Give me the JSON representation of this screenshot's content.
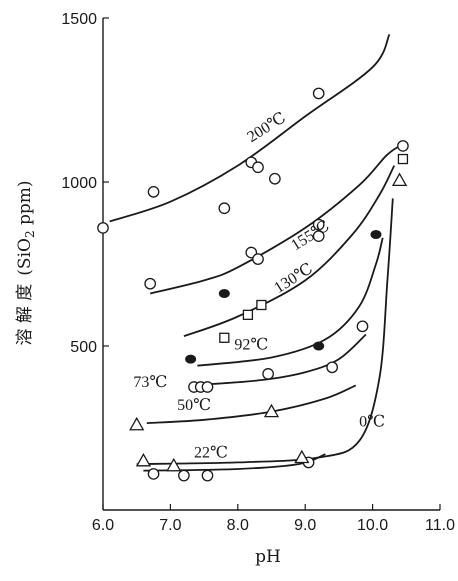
{
  "chart_data": {
    "type": "line",
    "xlabel": "pH",
    "ylabel": "溶 解 度 (SiO2 ppm)",
    "ylabel_parts": {
      "main": "溶 解 度",
      "unit_prefix": "(SiO",
      "unit_sub": "2",
      "unit_suffix": " ppm)"
    },
    "xlim": [
      6.0,
      11.0
    ],
    "ylim": [
      0,
      1500
    ],
    "x_ticks": [
      6.0,
      7.0,
      8.0,
      9.0,
      10.0,
      11.0
    ],
    "x_tick_labels": [
      "6.0",
      "7.0",
      "8.0",
      "9.0",
      "10.0",
      "11.0"
    ],
    "y_ticks": [
      500,
      1000,
      1500
    ],
    "y_tick_labels": [
      "500",
      "1000",
      "1500"
    ],
    "grid": false,
    "series": [
      {
        "name": "200℃",
        "marker": "circle-open",
        "curve": [
          [
            6.1,
            880
          ],
          [
            7.0,
            940
          ],
          [
            8.0,
            1050
          ],
          [
            9.0,
            1200
          ],
          [
            10.0,
            1350
          ],
          [
            10.25,
            1450
          ]
        ],
        "points": [
          [
            6.0,
            860
          ],
          [
            6.75,
            970
          ],
          [
            7.8,
            920
          ],
          [
            8.2,
            1060
          ],
          [
            8.3,
            1045
          ],
          [
            8.55,
            1010
          ],
          [
            9.2,
            1270
          ]
        ],
        "label_pos": [
          8.2,
          1120
        ]
      },
      {
        "name": "155℃",
        "marker": "circle-open",
        "curve": [
          [
            6.7,
            660
          ],
          [
            7.5,
            700
          ],
          [
            8.0,
            740
          ],
          [
            9.0,
            860
          ],
          [
            9.8,
            990
          ],
          [
            10.2,
            1080
          ],
          [
            10.4,
            1110
          ]
        ],
        "points": [
          [
            6.7,
            690
          ],
          [
            8.2,
            785
          ],
          [
            8.3,
            765
          ],
          [
            9.2,
            870
          ],
          [
            9.2,
            835
          ],
          [
            10.45,
            1110
          ]
        ],
        "label_pos": [
          8.85,
          790
        ]
      },
      {
        "name": "130℃",
        "marker": "square-open",
        "curve": [
          [
            7.2,
            530
          ],
          [
            8.0,
            590
          ],
          [
            9.0,
            700
          ],
          [
            9.7,
            840
          ],
          [
            10.1,
            960
          ],
          [
            10.32,
            1050
          ]
        ],
        "points": [
          [
            7.8,
            525
          ],
          [
            8.15,
            595
          ],
          [
            8.35,
            625
          ],
          [
            10.45,
            1070
          ]
        ],
        "label_pos": [
          8.6,
          660
        ]
      },
      {
        "name": "92℃",
        "marker": "circle-filled",
        "curve": [
          [
            7.4,
            440
          ],
          [
            8.5,
            465
          ],
          [
            9.3,
            520
          ],
          [
            9.8,
            620
          ],
          [
            10.05,
            750
          ],
          [
            10.15,
            830
          ]
        ],
        "points": [
          [
            7.3,
            460
          ],
          [
            7.8,
            660
          ],
          [
            9.2,
            500
          ],
          [
            10.05,
            840
          ]
        ],
        "label_pos": [
          7.95,
          490
        ]
      },
      {
        "name": "73℃",
        "marker": "circle-open",
        "curve": [
          [
            7.3,
            380
          ],
          [
            8.3,
            395
          ],
          [
            9.0,
            420
          ],
          [
            9.5,
            460
          ],
          [
            9.9,
            535
          ]
        ],
        "points": [
          [
            7.35,
            375
          ],
          [
            7.45,
            375
          ],
          [
            7.55,
            375
          ],
          [
            8.45,
            415
          ],
          [
            9.4,
            435
          ],
          [
            9.85,
            560
          ]
        ],
        "label_pos": [
          6.45,
          375
        ]
      },
      {
        "name": "50℃",
        "marker": "triangle-open",
        "curve": [
          [
            6.65,
            265
          ],
          [
            7.5,
            275
          ],
          [
            8.5,
            300
          ],
          [
            9.3,
            340
          ],
          [
            9.75,
            380
          ]
        ],
        "points": [
          [
            6.5,
            260
          ],
          [
            8.5,
            300
          ]
        ],
        "label_pos": [
          7.1,
          305
        ]
      },
      {
        "name": "22℃",
        "marker": "circle-open",
        "curve": [
          [
            6.6,
            120
          ],
          [
            8.0,
            125
          ],
          [
            8.9,
            140
          ],
          [
            9.3,
            170
          ]
        ],
        "points": [
          [
            6.75,
            110
          ],
          [
            7.2,
            105
          ],
          [
            7.55,
            105
          ],
          [
            9.05,
            145
          ]
        ],
        "label_pos": [
          7.35,
          160
        ]
      },
      {
        "name": "0℃",
        "marker": "triangle-open",
        "curve": [
          [
            6.5,
            140
          ],
          [
            8.0,
            145
          ],
          [
            9.2,
            160
          ],
          [
            9.8,
            210
          ],
          [
            10.1,
            400
          ],
          [
            10.22,
            700
          ],
          [
            10.3,
            950
          ]
        ],
        "points": [
          [
            6.6,
            150
          ],
          [
            7.05,
            135
          ],
          [
            8.95,
            160
          ],
          [
            10.4,
            1005
          ]
        ],
        "label_pos": [
          9.8,
          255
        ]
      }
    ]
  }
}
